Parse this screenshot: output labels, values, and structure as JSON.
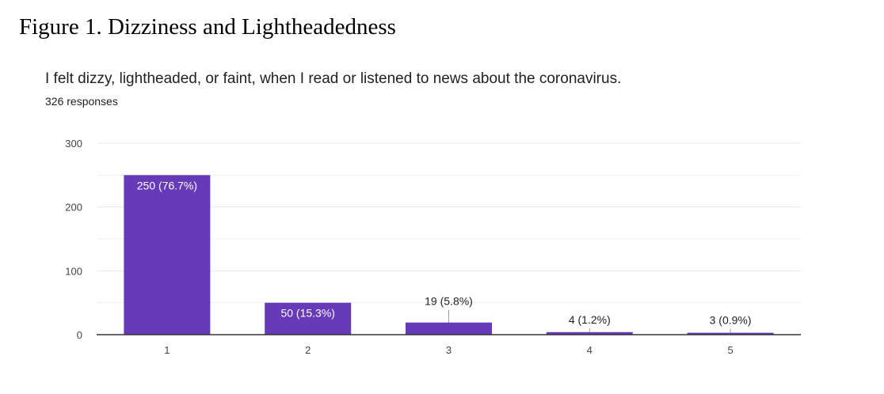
{
  "figure_title": "Figure 1.  Dizziness and Lightheadedness",
  "question": "I felt dizzy, lightheaded, or faint, when I read or listened to news about the coronavirus.",
  "responses_label": "326 responses",
  "colors": {
    "bar": "#673ab7",
    "grid": "#e8e8e8",
    "axis": "#333333",
    "label_dark": "#202124",
    "label_light": "#ffffff"
  },
  "chart_data": {
    "type": "bar",
    "categories": [
      "1",
      "2",
      "3",
      "4",
      "5"
    ],
    "values": [
      250,
      50,
      19,
      4,
      3
    ],
    "data_labels": [
      "250 (76.7%)",
      "50 (15.3%)",
      "19 (5.8%)",
      "4 (1.2%)",
      "3 (0.9%)"
    ],
    "ylim": [
      0,
      300
    ],
    "yticks": [
      0,
      100,
      200,
      300
    ],
    "grid": true,
    "xlabel": "",
    "ylabel": ""
  }
}
